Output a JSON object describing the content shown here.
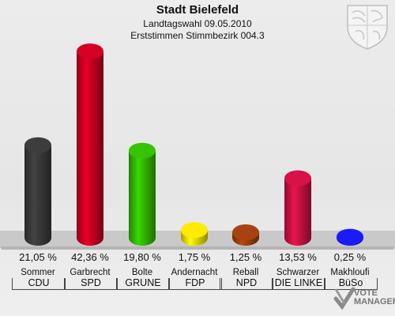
{
  "header": {
    "title": "Stadt Bielefeld",
    "subtitle": "Landtagswahl 09.05.2010",
    "subtitle2": "Erststimmen Stimmbezirk 004.3"
  },
  "chart_data": {
    "type": "bar",
    "title": "Stadt Bielefeld",
    "categories": [
      "CDU",
      "SPD",
      "GRÜNE",
      "FDP",
      "NPD",
      "DIE LINKE",
      "BüSo"
    ],
    "candidates": [
      "Sommer",
      "Garbrecht",
      "Bolte",
      "Andernacht",
      "Reball",
      "Schwarzer",
      "Makhloufi"
    ],
    "values": [
      21.05,
      42.36,
      19.8,
      1.75,
      1.25,
      13.53,
      0.25
    ],
    "labels": [
      "21,05 %",
      "42,36 %",
      "19,80 %",
      "1,75 %",
      "1,25 %",
      "13,53 %",
      "0,25 %"
    ],
    "colors": [
      "#3a3a3a",
      "#cc0022",
      "#33bb00",
      "#f5e000",
      "#a04010",
      "#cc1144",
      "#1a1aee"
    ],
    "ylim": [
      0,
      45
    ],
    "grid": false
  },
  "branding": {
    "logo_text_1": "VOTE",
    "logo_text_2": "MANAGER"
  }
}
